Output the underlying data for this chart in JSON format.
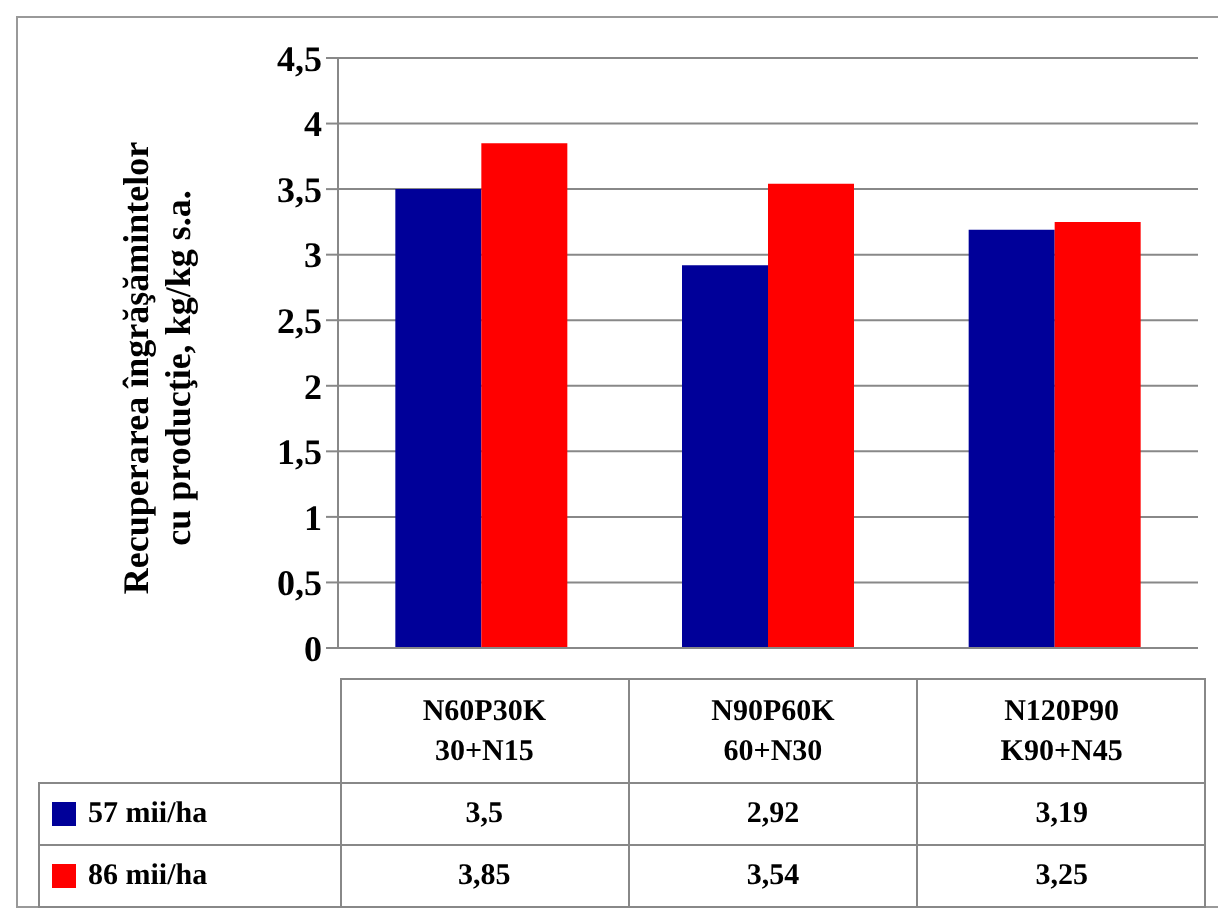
{
  "chart_data": {
    "type": "bar",
    "ylabel": "Recuperarea îngrăşămintelor\ncu producţie, kg/kg s.a.",
    "categories": [
      "N60P30K\n30+N15",
      "N90P60K\n60+N30",
      "N120P90\nK90+N45"
    ],
    "series": [
      {
        "name": "57 mii/ha",
        "color": "#000099",
        "values": [
          3.5,
          2.92,
          3.19
        ],
        "value_labels": [
          "3,5",
          "2,92",
          "3,19"
        ]
      },
      {
        "name": "86 mii/ha",
        "color": "#ff0000",
        "values": [
          3.85,
          3.54,
          3.25
        ],
        "value_labels": [
          "3,85",
          "3,54",
          "3,25"
        ]
      }
    ],
    "ylim": [
      0,
      4.5
    ],
    "yticks": [
      0,
      {
        "value": 0.5,
        "label": "0,5"
      },
      1,
      {
        "value": 1.5,
        "label": "1,5"
      },
      2,
      {
        "value": 2.5,
        "label": "2,5"
      },
      3,
      {
        "value": 3.5,
        "label": "3,5"
      },
      4,
      {
        "value": 4.5,
        "label": "4,5"
      }
    ],
    "grid": "y",
    "legend": "bottom"
  }
}
